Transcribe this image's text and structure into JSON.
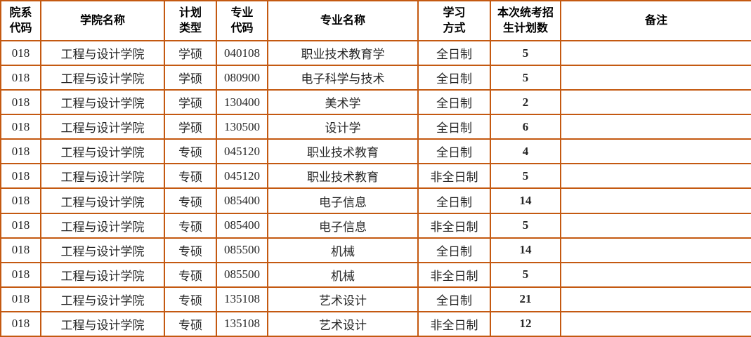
{
  "table": {
    "title_semantic": "graduate-enrollment-plan-table",
    "colors": {
      "border": "#C45911",
      "plan_count_text": "#FF0000",
      "body_text": "#262626",
      "header_text": "#000000"
    },
    "headers": {
      "dept_code": "院系\n代码",
      "college": "学院名称",
      "plan_type": "计划\n类型",
      "major_code": "专业\n代码",
      "major_name": "专业名称",
      "study_mode": "学习\n方式",
      "plan_count": "本次统考招\n生计划数",
      "remark": "备注"
    },
    "rows": [
      {
        "dept_code": "018",
        "college": "工程与设计学院",
        "plan_type": "学硕",
        "major_code": "040108",
        "major_name": "职业技术教育学",
        "study_mode": "全日制",
        "plan_count": "5",
        "remark": ""
      },
      {
        "dept_code": "018",
        "college": "工程与设计学院",
        "plan_type": "学硕",
        "major_code": "080900",
        "major_name": "电子科学与技术",
        "study_mode": "全日制",
        "plan_count": "5",
        "remark": ""
      },
      {
        "dept_code": "018",
        "college": "工程与设计学院",
        "plan_type": "学硕",
        "major_code": "130400",
        "major_name": "美术学",
        "study_mode": "全日制",
        "plan_count": "2",
        "remark": ""
      },
      {
        "dept_code": "018",
        "college": "工程与设计学院",
        "plan_type": "学硕",
        "major_code": "130500",
        "major_name": "设计学",
        "study_mode": "全日制",
        "plan_count": "6",
        "remark": ""
      },
      {
        "dept_code": "018",
        "college": "工程与设计学院",
        "plan_type": "专硕",
        "major_code": "045120",
        "major_name": "职业技术教育",
        "study_mode": "全日制",
        "plan_count": "4",
        "remark": ""
      },
      {
        "dept_code": "018",
        "college": "工程与设计学院",
        "plan_type": "专硕",
        "major_code": "045120",
        "major_name": "职业技术教育",
        "study_mode": "非全日制",
        "plan_count": "5",
        "remark": ""
      },
      {
        "dept_code": "018",
        "college": "工程与设计学院",
        "plan_type": "专硕",
        "major_code": "085400",
        "major_name": "电子信息",
        "study_mode": "全日制",
        "plan_count": "14",
        "remark": ""
      },
      {
        "dept_code": "018",
        "college": "工程与设计学院",
        "plan_type": "专硕",
        "major_code": "085400",
        "major_name": "电子信息",
        "study_mode": "非全日制",
        "plan_count": "5",
        "remark": ""
      },
      {
        "dept_code": "018",
        "college": "工程与设计学院",
        "plan_type": "专硕",
        "major_code": "085500",
        "major_name": "机械",
        "study_mode": "全日制",
        "plan_count": "14",
        "remark": ""
      },
      {
        "dept_code": "018",
        "college": "工程与设计学院",
        "plan_type": "专硕",
        "major_code": "085500",
        "major_name": "机械",
        "study_mode": "非全日制",
        "plan_count": "5",
        "remark": ""
      },
      {
        "dept_code": "018",
        "college": "工程与设计学院",
        "plan_type": "专硕",
        "major_code": "135108",
        "major_name": "艺术设计",
        "study_mode": "全日制",
        "plan_count": "21",
        "remark": ""
      },
      {
        "dept_code": "018",
        "college": "工程与设计学院",
        "plan_type": "专硕",
        "major_code": "135108",
        "major_name": "艺术设计",
        "study_mode": "非全日制",
        "plan_count": "12",
        "remark": ""
      }
    ]
  }
}
